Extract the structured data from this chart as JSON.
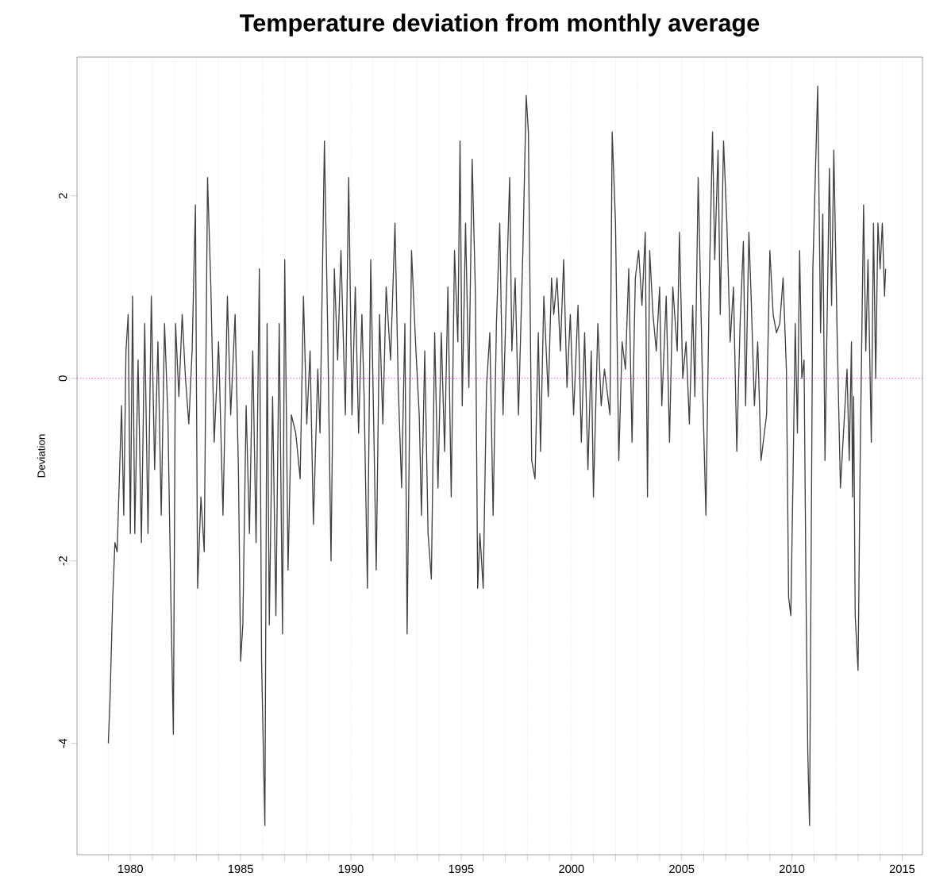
{
  "chart_data": {
    "type": "line",
    "title": "Temperature deviation from monthly average",
    "ylabel": "Deviation",
    "xlim": [
      1977.58,
      2015.92
    ],
    "ylim": [
      -5.22,
      3.52
    ],
    "xticks": [
      {
        "value": 1979,
        "label": null
      },
      1980,
      {
        "value": 1981,
        "label": null
      },
      {
        "value": 1982,
        "label": null
      },
      {
        "value": 1983,
        "label": null
      },
      {
        "value": 1984,
        "label": null
      },
      1985,
      {
        "value": 1986,
        "label": null
      },
      {
        "value": 1987,
        "label": null
      },
      {
        "value": 1988,
        "label": null
      },
      {
        "value": 1989,
        "label": null
      },
      1990,
      {
        "value": 1991,
        "label": null
      },
      {
        "value": 1992,
        "label": null
      },
      {
        "value": 1993,
        "label": null
      },
      {
        "value": 1994,
        "label": null
      },
      1995,
      {
        "value": 1996,
        "label": null
      },
      {
        "value": 1997,
        "label": null
      },
      {
        "value": 1998,
        "label": null
      },
      {
        "value": 1999,
        "label": null
      },
      2000,
      {
        "value": 2001,
        "label": null
      },
      {
        "value": 2002,
        "label": null
      },
      {
        "value": 2003,
        "label": null
      },
      {
        "value": 2004,
        "label": null
      },
      2005,
      {
        "value": 2006,
        "label": null
      },
      {
        "value": 2007,
        "label": null
      },
      {
        "value": 2008,
        "label": null
      },
      {
        "value": 2009,
        "label": null
      },
      2010,
      {
        "value": 2011,
        "label": null
      },
      {
        "value": 2012,
        "label": null
      },
      {
        "value": 2013,
        "label": null
      },
      {
        "value": 2014,
        "label": null
      },
      2015
    ],
    "yticks": [
      -4,
      -2,
      0,
      2
    ],
    "grid": "x",
    "ref_lines": [
      {
        "axis": "y",
        "value": 0,
        "color": "#ff00ff",
        "line_style": "dotted"
      }
    ],
    "series": [
      {
        "color": "#404040",
        "x": [
          1979.0,
          1979.08,
          1979.2,
          1979.3,
          1979.4,
          1979.5,
          1979.6,
          1979.7,
          1979.8,
          1979.9,
          1980.0,
          1980.1,
          1980.2,
          1980.35,
          1980.5,
          1980.65,
          1980.8,
          1980.95,
          1981.1,
          1981.25,
          1981.4,
          1981.55,
          1981.7,
          1981.85,
          1981.95,
          1982.05,
          1982.2,
          1982.35,
          1982.5,
          1982.65,
          1982.8,
          1982.95,
          1983.05,
          1983.2,
          1983.35,
          1983.5,
          1983.65,
          1983.8,
          1984.0,
          1984.2,
          1984.4,
          1984.55,
          1984.75,
          1984.9,
          1985.0,
          1985.1,
          1985.25,
          1985.4,
          1985.55,
          1985.7,
          1985.85,
          1985.95,
          1986.1,
          1986.2,
          1986.3,
          1986.45,
          1986.6,
          1986.75,
          1986.9,
          1987.0,
          1987.15,
          1987.3,
          1987.5,
          1987.7,
          1987.85,
          1988.0,
          1988.15,
          1988.3,
          1988.5,
          1988.6,
          1988.8,
          1988.95,
          1989.1,
          1989.25,
          1989.4,
          1989.55,
          1989.75,
          1989.9,
          1990.05,
          1990.2,
          1990.35,
          1990.5,
          1990.6,
          1990.75,
          1990.9,
          1991.05,
          1991.15,
          1991.3,
          1991.45,
          1991.6,
          1991.8,
          1992.0,
          1992.15,
          1992.3,
          1992.45,
          1992.55,
          1992.75,
          1992.95,
          1993.1,
          1993.2,
          1993.35,
          1993.5,
          1993.65,
          1993.8,
          1993.95,
          1994.1,
          1994.25,
          1994.4,
          1994.55,
          1994.7,
          1994.85,
          1994.95,
          1995.05,
          1995.2,
          1995.35,
          1995.5,
          1995.65,
          1995.75,
          1995.85,
          1996.0,
          1996.15,
          1996.3,
          1996.45,
          1996.6,
          1996.75,
          1996.9,
          1997.05,
          1997.2,
          1997.3,
          1997.45,
          1997.6,
          1997.8,
          1997.95,
          1998.05,
          1998.2,
          1998.35,
          1998.5,
          1998.6,
          1998.75,
          1998.95,
          1999.1,
          1999.2,
          1999.35,
          1999.5,
          1999.65,
          1999.8,
          1999.95,
          2000.1,
          2000.3,
          2000.45,
          2000.6,
          2000.75,
          2000.9,
          2001.0,
          2001.2,
          2001.35,
          2001.5,
          2001.75,
          2001.85,
          2002.0,
          2002.15,
          2002.3,
          2002.45,
          2002.6,
          2002.75,
          2002.9,
          2003.05,
          2003.2,
          2003.35,
          2003.45,
          2003.55,
          2003.7,
          2003.85,
          2004.0,
          2004.1,
          2004.3,
          2004.45,
          2004.6,
          2004.8,
          2004.9,
          2005.05,
          2005.2,
          2005.35,
          2005.5,
          2005.6,
          2005.75,
          2005.95,
          2006.1,
          2006.25,
          2006.4,
          2006.5,
          2006.65,
          2006.75,
          2006.9,
          2007.05,
          2007.2,
          2007.35,
          2007.5,
          2007.65,
          2007.8,
          2007.9,
          2008.05,
          2008.15,
          2008.3,
          2008.45,
          2008.6,
          2008.7,
          2008.85,
          2009.0,
          2009.15,
          2009.3,
          2009.45,
          2009.6,
          2009.75,
          2009.85,
          2009.95,
          2010.05,
          2010.15,
          2010.25,
          2010.35,
          2010.45,
          2010.55,
          2010.65,
          2010.72,
          2010.8,
          2010.95,
          2011.17,
          2011.3,
          2011.4,
          2011.5,
          2011.7,
          2011.8,
          2011.9,
          2012.05,
          2012.2,
          2012.5,
          2012.6,
          2012.7,
          2012.75,
          2012.8,
          2012.87,
          2013.0,
          2013.1,
          2013.25,
          2013.35,
          2013.45,
          2013.6,
          2013.7,
          2013.8,
          2013.9,
          2014.0,
          2014.1,
          2014.2,
          2014.25
        ],
        "values": [
          -4.0,
          -3.5,
          -2.4,
          -1.8,
          -1.9,
          -1.1,
          -0.3,
          -1.5,
          0.3,
          0.7,
          -1.7,
          0.9,
          -1.7,
          0.2,
          -1.8,
          0.6,
          -1.7,
          0.9,
          -1.0,
          0.4,
          -1.5,
          0.6,
          -0.4,
          -2.6,
          -3.9,
          0.6,
          -0.2,
          0.7,
          0.0,
          -0.5,
          0.3,
          1.9,
          -2.3,
          -1.3,
          -1.9,
          2.2,
          1.0,
          -0.7,
          0.4,
          -1.5,
          0.9,
          -0.4,
          0.7,
          -1.0,
          -3.1,
          -2.7,
          -0.3,
          -1.7,
          0.3,
          -1.8,
          1.2,
          -3.1,
          -4.9,
          0.6,
          -2.7,
          -0.2,
          -2.6,
          0.6,
          -2.8,
          1.3,
          -2.1,
          -0.4,
          -0.6,
          -1.1,
          0.9,
          -0.5,
          0.3,
          -1.6,
          0.1,
          -0.6,
          2.6,
          0.5,
          -2.0,
          1.2,
          0.2,
          1.4,
          -0.4,
          2.2,
          -0.4,
          1.0,
          -0.6,
          0.7,
          -0.2,
          -2.3,
          1.3,
          -0.7,
          -2.1,
          0.7,
          -0.5,
          1.0,
          0.2,
          1.7,
          -0.1,
          -1.2,
          0.6,
          -2.8,
          1.4,
          0.3,
          -0.4,
          -1.5,
          0.3,
          -1.7,
          -2.2,
          0.5,
          -1.2,
          0.5,
          -0.8,
          1.0,
          -1.3,
          1.4,
          0.4,
          2.6,
          -0.3,
          1.7,
          -0.1,
          2.4,
          0.9,
          -2.3,
          -1.7,
          -2.3,
          -0.1,
          0.5,
          -1.5,
          0.6,
          1.7,
          -0.4,
          0.9,
          2.2,
          0.3,
          1.1,
          -0.4,
          1.4,
          3.1,
          2.7,
          -0.9,
          -1.1,
          0.5,
          -0.8,
          0.9,
          -0.2,
          1.1,
          0.7,
          1.1,
          0.3,
          1.3,
          -0.1,
          0.7,
          -0.4,
          0.8,
          -0.7,
          0.5,
          -1.0,
          0.3,
          -1.3,
          0.6,
          -0.3,
          0.1,
          -0.4,
          2.7,
          1.7,
          -0.9,
          0.4,
          0.1,
          1.2,
          -0.7,
          1.1,
          1.4,
          0.8,
          1.6,
          -1.3,
          1.4,
          0.7,
          0.3,
          1.0,
          -0.3,
          0.9,
          -0.7,
          1.0,
          0.3,
          1.6,
          0.0,
          0.4,
          -0.5,
          0.8,
          -0.2,
          2.2,
          -0.1,
          -1.5,
          1.0,
          2.7,
          1.3,
          2.5,
          0.7,
          2.6,
          1.7,
          0.4,
          1.0,
          -0.8,
          0.6,
          1.5,
          -0.3,
          1.6,
          0.9,
          -0.3,
          0.4,
          -0.9,
          -0.7,
          -0.4,
          1.4,
          0.7,
          0.5,
          0.6,
          1.1,
          0.1,
          -2.4,
          -2.6,
          -1.1,
          0.6,
          -0.6,
          1.4,
          0.0,
          0.2,
          -2.6,
          -4.1,
          -4.9,
          1.2,
          3.2,
          0.5,
          1.8,
          -0.9,
          2.3,
          0.8,
          2.5,
          0.5,
          -1.2,
          0.1,
          -0.9,
          0.4,
          -1.3,
          -0.2,
          -2.6,
          -3.2,
          -0.8,
          1.9,
          0.3,
          1.3,
          -0.7,
          1.7,
          0.0,
          1.7,
          1.2,
          1.7,
          0.9,
          1.2
        ]
      }
    ]
  }
}
